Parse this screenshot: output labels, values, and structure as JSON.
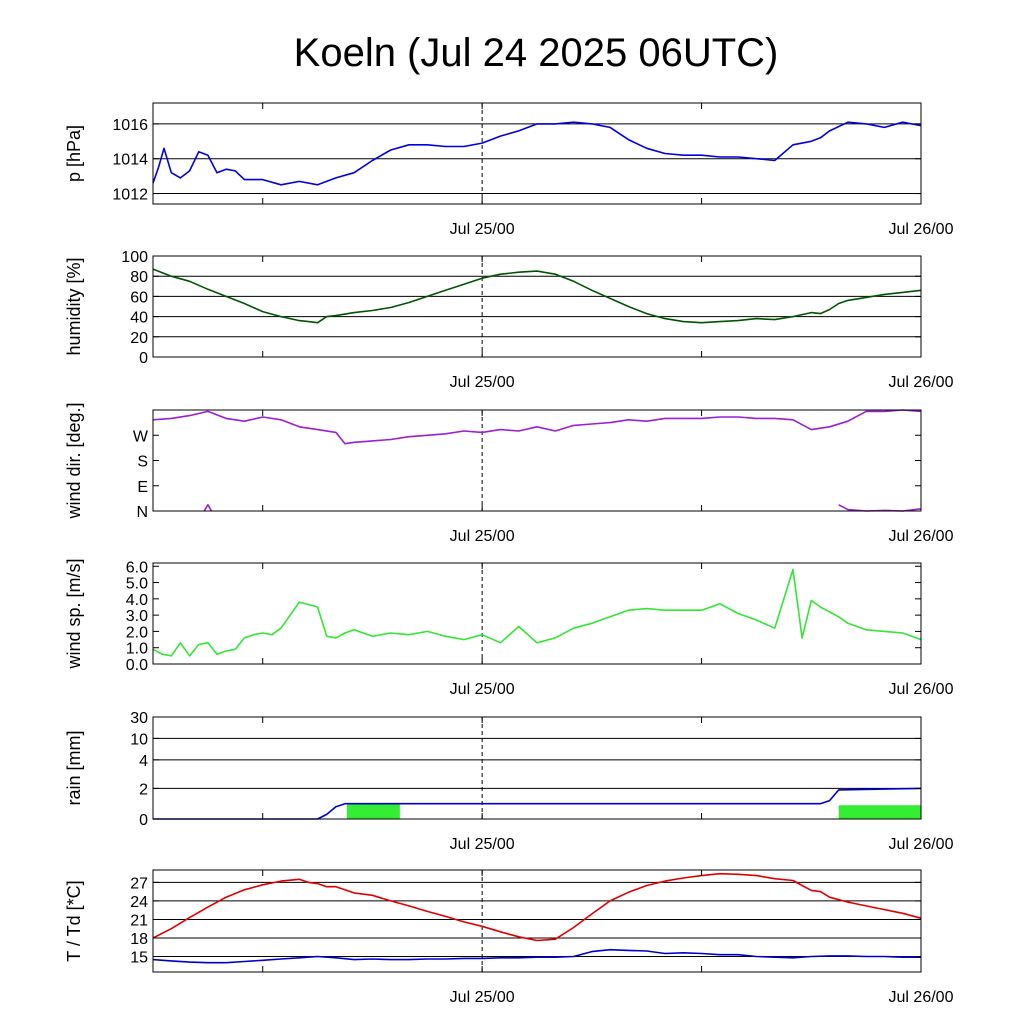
{
  "title": "Koeln (Jul 24 2025 06UTC)",
  "colors": {
    "pressure": "#0000e0",
    "humidity": "#005500",
    "wind_dir": "#9a1fd6",
    "wind_speed": "#33e633",
    "rain_line": "#0000cc",
    "rain_bar": "#33ee33",
    "temperature": "#e00000",
    "dewpoint": "#0000cc"
  },
  "chart_data": [
    {
      "type": "line",
      "ylabel": "p [hPa]",
      "x_ticks": [
        "Jul 25/00",
        "Jul 26/00"
      ],
      "x_range_hours": [
        0,
        42
      ],
      "ylim": [
        1011.4,
        1017.2
      ],
      "y_ticks": [
        1012,
        1014,
        1016
      ],
      "y_tick_labels": [
        "1012",
        "1014",
        "1016"
      ],
      "grid": true,
      "series": [
        {
          "color_key": "pressure",
          "x": [
            0,
            0.3,
            0.6,
            1,
            1.5,
            2,
            2.5,
            3,
            3.5,
            4,
            4.5,
            5,
            6,
            7,
            8,
            9,
            10,
            11,
            12,
            13,
            14,
            15,
            16,
            17,
            18,
            19,
            20,
            21,
            22,
            23,
            24,
            25,
            26,
            27,
            28,
            29,
            30,
            31,
            32,
            33,
            34,
            35,
            36,
            36.5,
            37,
            38,
            39,
            40,
            41,
            42
          ],
          "y": [
            1012.6,
            1013.5,
            1014.6,
            1013.2,
            1012.9,
            1013.3,
            1014.4,
            1014.2,
            1013.2,
            1013.4,
            1013.3,
            1012.8,
            1012.8,
            1012.5,
            1012.7,
            1012.5,
            1012.9,
            1013.2,
            1013.9,
            1014.5,
            1014.8,
            1014.8,
            1014.7,
            1014.7,
            1014.9,
            1015.3,
            1015.6,
            1016.0,
            1016.0,
            1016.1,
            1016.0,
            1015.8,
            1015.1,
            1014.6,
            1014.3,
            1014.2,
            1014.2,
            1014.1,
            1014.1,
            1014.0,
            1013.9,
            1014.8,
            1015.0,
            1015.2,
            1015.6,
            1016.1,
            1016.0,
            1015.8,
            1016.1,
            1015.9
          ]
        }
      ]
    },
    {
      "type": "line",
      "ylabel": "humidity [%]",
      "x_ticks": [
        "Jul 25/00",
        "Jul 26/00"
      ],
      "x_range_hours": [
        0,
        42
      ],
      "ylim": [
        0,
        100
      ],
      "y_ticks": [
        0,
        20,
        40,
        60,
        80,
        100
      ],
      "y_tick_labels": [
        "0",
        "20",
        "40",
        "60",
        "80",
        "100"
      ],
      "grid": true,
      "series": [
        {
          "color_key": "humidity",
          "x": [
            0,
            1,
            2,
            3,
            4,
            5,
            6,
            7,
            8,
            8.5,
            9,
            9.5,
            10,
            11,
            12,
            13,
            14,
            15,
            16,
            17,
            18,
            19,
            20,
            21,
            22,
            23,
            24,
            25,
            26,
            27,
            28,
            29,
            30,
            31,
            32,
            33,
            34,
            35,
            36,
            36.5,
            37,
            37.5,
            38,
            39,
            40,
            41,
            42
          ],
          "y": [
            87,
            80,
            75,
            67,
            60,
            53,
            45,
            40,
            36,
            35,
            34,
            40,
            41,
            44,
            46,
            49,
            54,
            60,
            66,
            72,
            78,
            82,
            84,
            85,
            82,
            75,
            66,
            58,
            50,
            43,
            38,
            35,
            34,
            35,
            36,
            38,
            37,
            40,
            44,
            43,
            47,
            53,
            56,
            59,
            62,
            64,
            66
          ]
        }
      ]
    },
    {
      "type": "line",
      "ylabel": "wind dir. [deg.]",
      "x_ticks": [
        "Jul 25/00",
        "Jul 26/00"
      ],
      "x_range_hours": [
        0,
        42
      ],
      "ylim": [
        0,
        360
      ],
      "y_ticks": [
        0,
        90,
        180,
        270
      ],
      "y_tick_labels": [
        "N",
        "E",
        "S",
        "W"
      ],
      "grid": false,
      "series": [
        {
          "color_key": "wind_dir",
          "x": [
            0,
            1,
            2,
            3,
            4,
            5,
            6,
            7,
            8,
            9,
            10,
            10.5,
            11,
            12,
            13,
            14,
            15,
            16,
            17,
            18,
            19,
            20,
            21,
            22,
            23,
            24,
            25,
            26,
            27,
            28,
            29,
            30,
            31,
            32,
            33,
            34,
            35,
            36,
            37,
            38,
            39,
            40,
            41,
            42
          ],
          "y": [
            325,
            330,
            340,
            355,
            330,
            320,
            335,
            325,
            300,
            290,
            280,
            240,
            245,
            250,
            255,
            265,
            270,
            275,
            285,
            280,
            290,
            285,
            300,
            285,
            305,
            310,
            315,
            325,
            320,
            330,
            330,
            330,
            335,
            335,
            330,
            330,
            325,
            290,
            300,
            320,
            355,
            355,
            360,
            355
          ]
        },
        {
          "color_key": "wind_dir",
          "x": [
            2.8,
            3.0,
            3.2
          ],
          "y": [
            0,
            22,
            0
          ]
        },
        {
          "color_key": "wind_dir",
          "x": [
            37.5,
            38,
            39,
            40,
            41,
            42
          ],
          "y": [
            22,
            5,
            0,
            2,
            0,
            8
          ]
        }
      ]
    },
    {
      "type": "line",
      "ylabel": "wind sp. [m/s]",
      "x_ticks": [
        "Jul 25/00",
        "Jul 26/00"
      ],
      "x_range_hours": [
        0,
        42
      ],
      "ylim": [
        0,
        6.2
      ],
      "y_ticks": [
        0,
        1,
        2,
        3,
        4,
        5,
        6
      ],
      "y_tick_labels": [
        "0.0",
        "1.0",
        "2.0",
        "3.0",
        "4.0",
        "5.0",
        "6.0"
      ],
      "grid": false,
      "series": [
        {
          "color_key": "wind_speed",
          "x": [
            0,
            0.5,
            1,
            1.5,
            2,
            2.5,
            3,
            3.5,
            4,
            4.5,
            5,
            5.5,
            6,
            6.5,
            7,
            8,
            9,
            9.5,
            10,
            10.5,
            11,
            12,
            13,
            14,
            15,
            16,
            17,
            18,
            19,
            20,
            21,
            22,
            23,
            24,
            25,
            26,
            27,
            28,
            29,
            30,
            31,
            32,
            33,
            34,
            35,
            35.5,
            36,
            36.5,
            37,
            37.5,
            38,
            39,
            40,
            41,
            42
          ],
          "y": [
            0.9,
            0.6,
            0.5,
            1.3,
            0.5,
            1.2,
            1.3,
            0.6,
            0.8,
            0.9,
            1.6,
            1.8,
            1.9,
            1.8,
            2.2,
            3.8,
            3.5,
            1.7,
            1.6,
            1.9,
            2.1,
            1.7,
            1.9,
            1.8,
            2.0,
            1.7,
            1.5,
            1.8,
            1.3,
            2.3,
            1.3,
            1.6,
            2.2,
            2.5,
            2.9,
            3.3,
            3.4,
            3.3,
            3.3,
            3.3,
            3.7,
            3.1,
            2.7,
            2.2,
            5.8,
            1.6,
            3.9,
            3.5,
            3.2,
            2.9,
            2.5,
            2.1,
            2.0,
            1.9,
            1.5
          ]
        }
      ]
    },
    {
      "type": "line",
      "ylabel": "rain [mm]",
      "x_ticks": [
        "Jul 25/00",
        "Jul 26/00"
      ],
      "x_range_hours": [
        0,
        42
      ],
      "ylim": [
        0,
        30
      ],
      "y_ticks": [
        0,
        2,
        4,
        10,
        30
      ],
      "y_tick_labels": [
        "0",
        "2",
        "4",
        "10",
        "30"
      ],
      "grid": true,
      "series": [
        {
          "color_key": "rain_line",
          "x": [
            0,
            9,
            9.5,
            10,
            10.5,
            36.5,
            37,
            37.5,
            42
          ],
          "y": [
            0,
            0,
            0.3,
            0.8,
            1.0,
            1.0,
            1.2,
            1.9,
            2.0
          ]
        }
      ],
      "bars": [
        {
          "x_start": 10.6,
          "x_end": 13.5,
          "value": 1.0,
          "color_key": "rain_bar"
        },
        {
          "x_start": 37.5,
          "x_end": 42,
          "value": 0.9,
          "color_key": "rain_bar"
        }
      ]
    },
    {
      "type": "line",
      "ylabel": "T / Td [*C]",
      "x_ticks": [
        "Jul 25/00",
        "Jul 26/00"
      ],
      "x_range_hours": [
        0,
        42
      ],
      "ylim": [
        12.5,
        29
      ],
      "y_ticks": [
        15,
        18,
        21,
        24,
        27
      ],
      "y_tick_labels": [
        "15",
        "18",
        "21",
        "24",
        "27"
      ],
      "grid": true,
      "series": [
        {
          "name": "T",
          "color_key": "temperature",
          "x": [
            0,
            1,
            2,
            3,
            4,
            5,
            6,
            7,
            8,
            8.5,
            9,
            9.5,
            10,
            11,
            12,
            13,
            14,
            15,
            16,
            17,
            18,
            19,
            20,
            21,
            22,
            23,
            24,
            25,
            26,
            27,
            28,
            29,
            30,
            31,
            32,
            33,
            34,
            35,
            35.5,
            36,
            36.5,
            37,
            38,
            39,
            40,
            41,
            42
          ],
          "y": [
            18,
            19.5,
            21.3,
            23,
            24.6,
            25.8,
            26.6,
            27.2,
            27.5,
            27,
            26.8,
            26.3,
            26.3,
            25.3,
            24.9,
            24,
            23.2,
            22.3,
            21.5,
            20.6,
            19.9,
            19,
            18.2,
            17.6,
            17.8,
            19.7,
            21.9,
            24,
            25.4,
            26.5,
            27.2,
            27.7,
            28.1,
            28.4,
            28.3,
            28.1,
            27.6,
            27.3,
            26.5,
            25.7,
            25.5,
            24.6,
            23.8,
            23.2,
            22.6,
            22,
            21.2
          ]
        },
        {
          "name": "Td",
          "color_key": "dewpoint",
          "x": [
            0,
            1,
            2,
            3,
            4,
            5,
            6,
            7,
            8,
            9,
            10,
            11,
            12,
            13,
            14,
            15,
            16,
            17,
            18,
            19,
            20,
            21,
            22,
            23,
            24,
            25,
            26,
            27,
            28,
            29,
            30,
            31,
            32,
            33,
            34,
            35,
            36,
            37,
            38,
            39,
            40,
            41,
            42
          ],
          "y": [
            14.5,
            14.3,
            14.1,
            14.0,
            14.0,
            14.2,
            14.4,
            14.6,
            14.8,
            15.0,
            14.8,
            14.5,
            14.6,
            14.5,
            14.5,
            14.6,
            14.6,
            14.7,
            14.7,
            14.8,
            14.8,
            14.9,
            14.9,
            15.0,
            15.8,
            16.1,
            16.0,
            15.9,
            15.5,
            15.6,
            15.5,
            15.3,
            15.3,
            15.0,
            14.9,
            14.8,
            15.0,
            15.1,
            15.1,
            15.0,
            15.0,
            14.9,
            14.9
          ]
        }
      ]
    }
  ]
}
